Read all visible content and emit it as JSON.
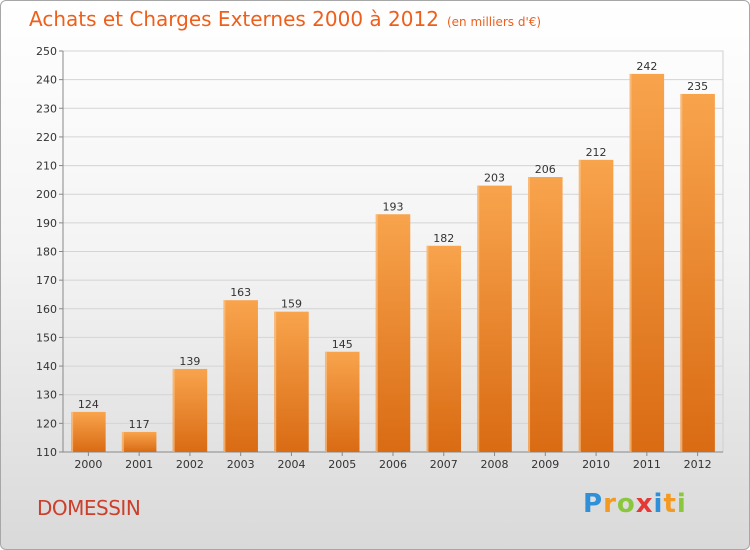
{
  "title": {
    "main": "Achats et Charges Externes 2000 à 2012",
    "unit": "(en milliers d'€)"
  },
  "place_name": "DOMESSIN",
  "brand": {
    "text": "Proxiti",
    "letter_colors": [
      "#2f8fd8",
      "#f29a21",
      "#8bc63f",
      "#e53935",
      "#2f8fd8",
      "#f29a21",
      "#8bc63f"
    ]
  },
  "colors": {
    "title": "#ee5f1b",
    "place": "#cc3f2c",
    "bar_light": "#f8a44d",
    "bar_dark": "#d96b13",
    "grid": "#d4d4d4"
  },
  "chart_data": {
    "type": "bar",
    "title": "Achats et Charges Externes 2000 à 2012",
    "subtitle": "(en milliers d'€)",
    "categories": [
      "2000",
      "2001",
      "2002",
      "2003",
      "2004",
      "2005",
      "2006",
      "2007",
      "2008",
      "2009",
      "2010",
      "2011",
      "2012"
    ],
    "values": [
      124,
      117,
      139,
      163,
      159,
      145,
      193,
      182,
      203,
      206,
      212,
      242,
      235
    ],
    "data_labels": [
      "124",
      "117",
      "139",
      "163",
      "159",
      "145",
      "193",
      "182",
      "203",
      "206",
      "212",
      "242",
      "235"
    ],
    "xlabel": "",
    "ylabel": "",
    "ylim": [
      110,
      250
    ],
    "yticks": [
      110,
      120,
      130,
      140,
      150,
      160,
      170,
      180,
      190,
      200,
      210,
      220,
      230,
      240,
      250
    ],
    "ytick_labels": [
      "110",
      "120",
      "130",
      "140",
      "150",
      "160",
      "170",
      "180",
      "190",
      "200",
      "210",
      "220",
      "230",
      "240",
      "250"
    ],
    "grid": true,
    "legend": "none"
  }
}
